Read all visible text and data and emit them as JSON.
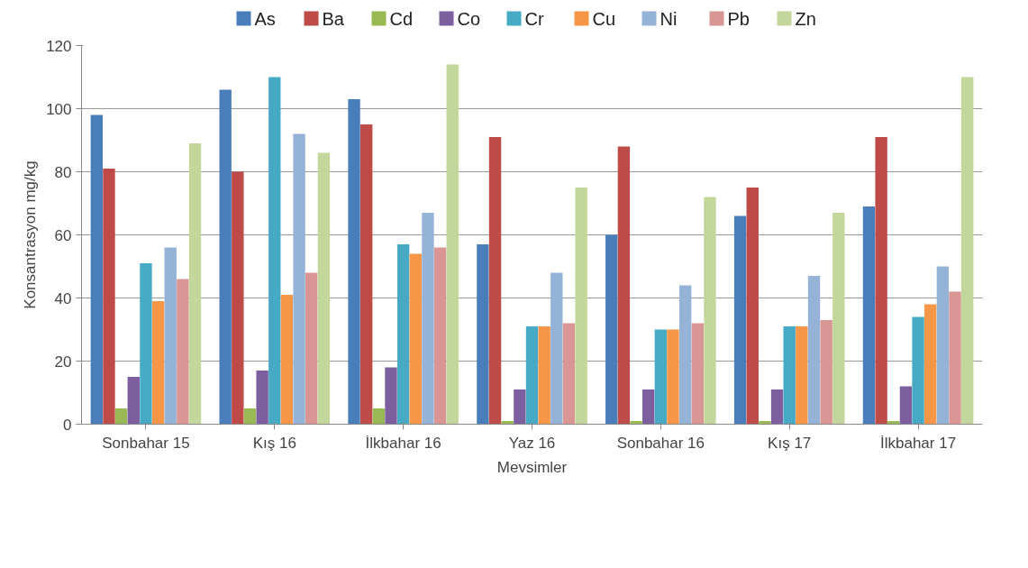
{
  "chart_data": {
    "type": "bar",
    "xlabel": "Mevsimler",
    "ylabel": "Konsantrasyon mg/kg",
    "categories": [
      "Sonbahar 15",
      "Kış 16",
      "İlkbahar 16",
      "Yaz 16",
      "Sonbahar 16",
      "Kış 17",
      "İlkbahar 17"
    ],
    "series": [
      {
        "name": "As",
        "color": "#4a7ebb",
        "values": [
          98,
          106,
          103,
          57,
          60,
          66,
          69
        ]
      },
      {
        "name": "Ba",
        "color": "#be4b48",
        "values": [
          81,
          80,
          95,
          91,
          88,
          75,
          91
        ]
      },
      {
        "name": "Cd",
        "color": "#98b954",
        "values": [
          5,
          5,
          5,
          1,
          1,
          1,
          1
        ]
      },
      {
        "name": "Co",
        "color": "#7d5fa0",
        "values": [
          15,
          17,
          18,
          11,
          11,
          11,
          12
        ]
      },
      {
        "name": "Cr",
        "color": "#46aac5",
        "values": [
          51,
          110,
          57,
          31,
          30,
          31,
          34
        ]
      },
      {
        "name": "Cu",
        "color": "#f79646",
        "values": [
          39,
          41,
          54,
          31,
          30,
          31,
          38
        ]
      },
      {
        "name": "Ni",
        "color": "#95b3d7",
        "values": [
          56,
          92,
          67,
          48,
          44,
          47,
          50
        ]
      },
      {
        "name": "Pb",
        "color": "#da9694",
        "values": [
          46,
          48,
          56,
          32,
          32,
          33,
          42
        ]
      },
      {
        "name": "Zn",
        "color": "#c3d69b",
        "values": [
          89,
          86,
          114,
          75,
          72,
          67,
          110
        ]
      }
    ],
    "ylim": [
      0,
      120
    ],
    "yticks": [
      0,
      20,
      40,
      60,
      80,
      100,
      120
    ],
    "grid": "y",
    "legend": "top"
  }
}
